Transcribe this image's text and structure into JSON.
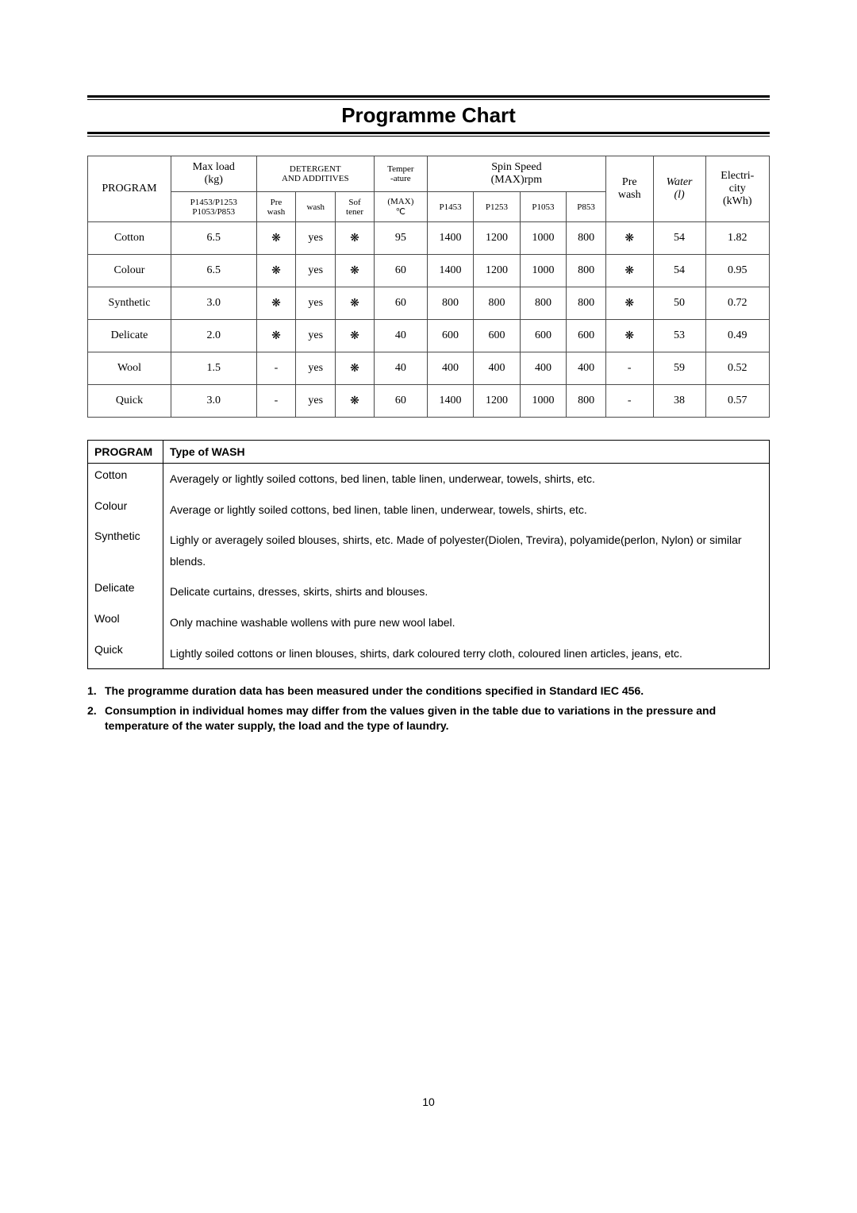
{
  "title": "Programme Chart",
  "chart": {
    "headers": {
      "program": "PROGRAM",
      "maxload": "Max load\n(kg)",
      "maxload_sub": "P1453/P1253\nP1053/P853",
      "detergent": "DETERGENT\nAND ADDITIVES",
      "det_pre": "Pre\nwash",
      "det_wash": "wash",
      "det_sof": "Sof\ntener",
      "temp": "Temper\n-ature",
      "temp_sub": "(MAX)\n℃",
      "spin": "Spin Speed\n(MAX)rpm",
      "spin_cols": [
        "P1453",
        "P1253",
        "P1053",
        "P853"
      ],
      "prewash": "Pre\nwash",
      "water": "Water\n(l)",
      "elec": "Electri-\ncity\n(kWh)"
    },
    "rows": [
      {
        "program": "Cotton",
        "load": "6.5",
        "pre": "❋",
        "wash": "yes",
        "sof": "❋",
        "temp": "95",
        "s1": "1400",
        "s2": "1200",
        "s3": "1000",
        "s4": "800",
        "prewash": "❋",
        "water": "54",
        "elec": "1.82"
      },
      {
        "program": "Colour",
        "load": "6.5",
        "pre": "❋",
        "wash": "yes",
        "sof": "❋",
        "temp": "60",
        "s1": "1400",
        "s2": "1200",
        "s3": "1000",
        "s4": "800",
        "prewash": "❋",
        "water": "54",
        "elec": "0.95"
      },
      {
        "program": "Synthetic",
        "load": "3.0",
        "pre": "❋",
        "wash": "yes",
        "sof": "❋",
        "temp": "60",
        "s1": "800",
        "s2": "800",
        "s3": "800",
        "s4": "800",
        "prewash": "❋",
        "water": "50",
        "elec": "0.72"
      },
      {
        "program": "Delicate",
        "load": "2.0",
        "pre": "❋",
        "wash": "yes",
        "sof": "❋",
        "temp": "40",
        "s1": "600",
        "s2": "600",
        "s3": "600",
        "s4": "600",
        "prewash": "❋",
        "water": "53",
        "elec": "0.49"
      },
      {
        "program": "Wool",
        "load": "1.5",
        "pre": "-",
        "wash": "yes",
        "sof": "❋",
        "temp": "40",
        "s1": "400",
        "s2": "400",
        "s3": "400",
        "s4": "400",
        "prewash": "-",
        "water": "59",
        "elec": "0.52"
      },
      {
        "program": "Quick",
        "load": "3.0",
        "pre": "-",
        "wash": "yes",
        "sof": "❋",
        "temp": "60",
        "s1": "1400",
        "s2": "1200",
        "s3": "1000",
        "s4": "800",
        "prewash": "-",
        "water": "38",
        "elec": "0.57"
      }
    ]
  },
  "types": {
    "header_prog": "PROGRAM",
    "header_type": "Type of WASH",
    "rows": [
      {
        "program": "Cotton",
        "desc": "Averagely or lightly soiled cottons, bed linen, table linen, underwear, towels, shirts, etc."
      },
      {
        "program": "Colour",
        "desc": "Average or lightly soiled cottons, bed linen, table linen, underwear, towels, shirts, etc."
      },
      {
        "program": "Synthetic",
        "desc": "Lighly or averagely soiled blouses, shirts, etc. Made of polyester(Diolen, Trevira), polyamide(perlon, Nylon) or similar blends."
      },
      {
        "program": "Delicate",
        "desc": "Delicate curtains, dresses, skirts, shirts and blouses."
      },
      {
        "program": "Wool",
        "desc": "Only machine washable wollens with pure new wool label."
      },
      {
        "program": "Quick",
        "desc": "Lightly soiled cottons or linen blouses, shirts, dark coloured terry cloth, coloured linen articles, jeans, etc."
      }
    ]
  },
  "notes": [
    "The programme duration data has been measured under the conditions specified in Standard IEC 456.",
    "Consumption in individual homes may differ from the values given in the table due to variations in the pressure and temperature of the water supply, the load and the type of laundry."
  ],
  "page_number": "10"
}
